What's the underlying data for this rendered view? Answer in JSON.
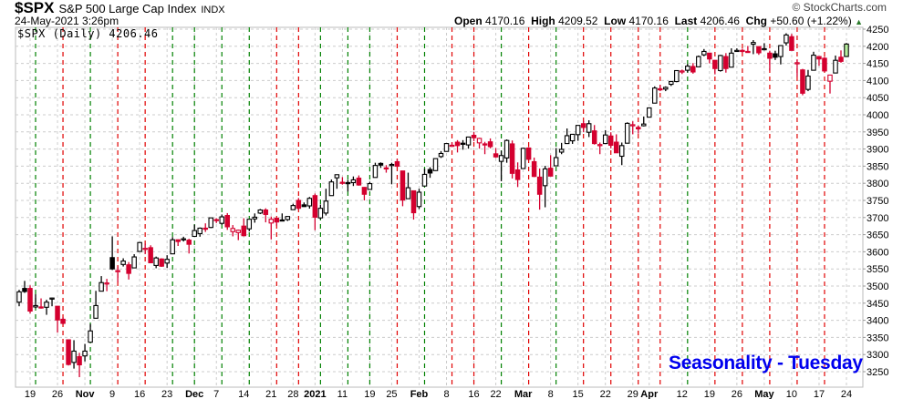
{
  "header": {
    "symbol": "$SPX",
    "description": "S&P 500 Large Cap Index",
    "exchange": "INDX",
    "datetime": "24-May-2021 3:26pm",
    "brand": "© StockCharts.com",
    "open_label": "Open",
    "open": "4170.16",
    "high_label": "High",
    "high": "4209.52",
    "low_label": "Low",
    "low": "4170.16",
    "last_label": "Last",
    "last": "4206.46",
    "chg_label": "Chg",
    "chg": "+50.60 (+1.22%)",
    "chg_arrow": "▲"
  },
  "legend": "$SPX (Daily) 4206.46",
  "annotation": "Seasonality - Tuesday",
  "colors": {
    "up": "#000000",
    "down": "#d4002f",
    "current": "#b8f0a0",
    "tuesday_up": "#008000",
    "tuesday_down": "#e00000",
    "grid": "#cccccc",
    "annotation": "#0000ee"
  },
  "chart_data": {
    "type": "candlestick",
    "ylim": [
      3225,
      4265
    ],
    "y_ticks": [
      3250,
      3300,
      3350,
      3400,
      3450,
      3500,
      3550,
      3600,
      3650,
      3700,
      3750,
      3800,
      3850,
      3900,
      3950,
      4000,
      4050,
      4100,
      4150,
      4200,
      4250
    ],
    "grid": true,
    "x_labels": [
      {
        "date": "2020-10-19",
        "label": "19",
        "bold": false
      },
      {
        "date": "2020-10-26",
        "label": "26",
        "bold": false
      },
      {
        "date": "2020-11-02",
        "label": "Nov",
        "bold": true
      },
      {
        "date": "2020-11-09",
        "label": "9",
        "bold": false
      },
      {
        "date": "2020-11-16",
        "label": "16",
        "bold": false
      },
      {
        "date": "2020-11-23",
        "label": "23",
        "bold": false
      },
      {
        "date": "2020-12-01",
        "label": "Dec",
        "bold": true
      },
      {
        "date": "2020-12-07",
        "label": "7",
        "bold": false
      },
      {
        "date": "2020-12-14",
        "label": "14",
        "bold": false
      },
      {
        "date": "2020-12-21",
        "label": "21",
        "bold": false
      },
      {
        "date": "2020-12-28",
        "label": "28",
        "bold": false
      },
      {
        "date": "2021-01-04",
        "label": "2021",
        "bold": true
      },
      {
        "date": "2021-01-11",
        "label": "11",
        "bold": false
      },
      {
        "date": "2021-01-19",
        "label": "19",
        "bold": false
      },
      {
        "date": "2021-01-25",
        "label": "25",
        "bold": false
      },
      {
        "date": "2021-02-01",
        "label": "Feb",
        "bold": true
      },
      {
        "date": "2021-02-08",
        "label": "8",
        "bold": false
      },
      {
        "date": "2021-02-16",
        "label": "16",
        "bold": false
      },
      {
        "date": "2021-02-22",
        "label": "22",
        "bold": false
      },
      {
        "date": "2021-03-01",
        "label": "Mar",
        "bold": true
      },
      {
        "date": "2021-03-08",
        "label": "8",
        "bold": false
      },
      {
        "date": "2021-03-15",
        "label": "15",
        "bold": false
      },
      {
        "date": "2021-03-22",
        "label": "22",
        "bold": false
      },
      {
        "date": "2021-03-29",
        "label": "29",
        "bold": false
      },
      {
        "date": "2021-04-01",
        "label": "Apr",
        "bold": true
      },
      {
        "date": "2021-04-12",
        "label": "12",
        "bold": false
      },
      {
        "date": "2021-04-19",
        "label": "19",
        "bold": false
      },
      {
        "date": "2021-04-26",
        "label": "26",
        "bold": false
      },
      {
        "date": "2021-05-03",
        "label": "May",
        "bold": true
      },
      {
        "date": "2021-05-10",
        "label": "10",
        "bold": false
      },
      {
        "date": "2021-05-17",
        "label": "17",
        "bold": false
      },
      {
        "date": "2021-05-24",
        "label": "24",
        "bold": false
      }
    ],
    "candles": [
      [
        "2020-10-15",
        3453,
        3489,
        3441,
        3483
      ],
      [
        "2020-10-16",
        3493,
        3515,
        3480,
        3484
      ],
      [
        "2020-10-19",
        3493,
        3502,
        3420,
        3427
      ],
      [
        "2020-10-20",
        3439,
        3476,
        3435,
        3443
      ],
      [
        "2020-10-21",
        3439,
        3464,
        3434,
        3436
      ],
      [
        "2020-10-22",
        3438,
        3460,
        3416,
        3453
      ],
      [
        "2020-10-23",
        3464,
        3466,
        3441,
        3465
      ],
      [
        "2020-10-26",
        3441,
        3441,
        3364,
        3401
      ],
      [
        "2020-10-27",
        3403,
        3409,
        3388,
        3391
      ],
      [
        "2020-10-28",
        3343,
        3343,
        3268,
        3271
      ],
      [
        "2020-10-29",
        3277,
        3342,
        3259,
        3310
      ],
      [
        "2020-10-30",
        3294,
        3305,
        3234,
        3270
      ],
      [
        "2020-11-02",
        3296,
        3331,
        3280,
        3310
      ],
      [
        "2020-11-03",
        3336,
        3389,
        3336,
        3369
      ],
      [
        "2020-11-04",
        3406,
        3486,
        3405,
        3443
      ],
      [
        "2020-11-05",
        3485,
        3529,
        3485,
        3510
      ],
      [
        "2020-11-06",
        3509,
        3521,
        3485,
        3509
      ],
      [
        "2020-11-09",
        3583,
        3645,
        3547,
        3550
      ],
      [
        "2020-11-10",
        3544,
        3557,
        3511,
        3545
      ],
      [
        "2020-11-11",
        3563,
        3581,
        3557,
        3573
      ],
      [
        "2020-11-12",
        3562,
        3570,
        3519,
        3537
      ],
      [
        "2020-11-13",
        3553,
        3593,
        3553,
        3585
      ],
      [
        "2020-11-16",
        3601,
        3628,
        3601,
        3627
      ],
      [
        "2020-11-17",
        3610,
        3624,
        3593,
        3610
      ],
      [
        "2020-11-18",
        3612,
        3619,
        3567,
        3568
      ],
      [
        "2020-11-19",
        3560,
        3586,
        3552,
        3582
      ],
      [
        "2020-11-20",
        3579,
        3581,
        3556,
        3558
      ],
      [
        "2020-11-23",
        3567,
        3590,
        3553,
        3578
      ],
      [
        "2020-11-24",
        3594,
        3643,
        3594,
        3635
      ],
      [
        "2020-11-25",
        3635,
        3636,
        3617,
        3630
      ],
      [
        "2020-11-27",
        3638,
        3644,
        3630,
        3638
      ],
      [
        "2020-11-30",
        3634,
        3638,
        3595,
        3622
      ],
      [
        "2020-12-01",
        3645,
        3679,
        3645,
        3662
      ],
      [
        "2020-12-02",
        3653,
        3671,
        3644,
        3669
      ],
      [
        "2020-12-03",
        3669,
        3683,
        3658,
        3667
      ],
      [
        "2020-12-04",
        3671,
        3700,
        3669,
        3699
      ],
      [
        "2020-12-07",
        3694,
        3698,
        3684,
        3692
      ],
      [
        "2020-12-08",
        3683,
        3709,
        3679,
        3702
      ],
      [
        "2020-12-09",
        3706,
        3713,
        3664,
        3673
      ],
      [
        "2020-12-10",
        3659,
        3678,
        3645,
        3668
      ],
      [
        "2020-12-11",
        3656,
        3665,
        3634,
        3663
      ],
      [
        "2020-12-14",
        3675,
        3698,
        3645,
        3647
      ],
      [
        "2020-12-15",
        3667,
        3695,
        3660,
        3695
      ],
      [
        "2020-12-16",
        3696,
        3712,
        3685,
        3701
      ],
      [
        "2020-12-17",
        3713,
        3725,
        3710,
        3722
      ],
      [
        "2020-12-18",
        3722,
        3727,
        3686,
        3709
      ],
      [
        "2020-12-21",
        3684,
        3703,
        3636,
        3695
      ],
      [
        "2020-12-22",
        3698,
        3698,
        3676,
        3687
      ],
      [
        "2020-12-23",
        3693,
        3712,
        3689,
        3690
      ],
      [
        "2020-12-24",
        3694,
        3704,
        3690,
        3703
      ],
      [
        "2020-12-28",
        3723,
        3740,
        3723,
        3735
      ],
      [
        "2020-12-29",
        3750,
        3757,
        3723,
        3727
      ],
      [
        "2020-12-30",
        3737,
        3744,
        3731,
        3732
      ],
      [
        "2020-12-31",
        3734,
        3760,
        3726,
        3756
      ],
      [
        "2021-01-04",
        3764,
        3770,
        3663,
        3701
      ],
      [
        "2021-01-05",
        3699,
        3738,
        3695,
        3727
      ],
      [
        "2021-01-06",
        3713,
        3784,
        3706,
        3748
      ],
      [
        "2021-01-07",
        3764,
        3811,
        3764,
        3804
      ],
      [
        "2021-01-08",
        3816,
        3826,
        3784,
        3825
      ],
      [
        "2021-01-11",
        3803,
        3818,
        3796,
        3800
      ],
      [
        "2021-01-12",
        3802,
        3810,
        3776,
        3801
      ],
      [
        "2021-01-13",
        3802,
        3820,
        3792,
        3810
      ],
      [
        "2021-01-14",
        3815,
        3823,
        3793,
        3795
      ],
      [
        "2021-01-15",
        3788,
        3789,
        3750,
        3768
      ],
      [
        "2021-01-19",
        3782,
        3804,
        3781,
        3799
      ],
      [
        "2021-01-20",
        3817,
        3860,
        3817,
        3852
      ],
      [
        "2021-01-21",
        3858,
        3861,
        3845,
        3853
      ],
      [
        "2021-01-22",
        3845,
        3853,
        3831,
        3842
      ],
      [
        "2021-01-25",
        3852,
        3860,
        3797,
        3855
      ],
      [
        "2021-01-26",
        3863,
        3871,
        3847,
        3850
      ],
      [
        "2021-01-27",
        3836,
        3836,
        3733,
        3751
      ],
      [
        "2021-01-28",
        3755,
        3831,
        3755,
        3787
      ],
      [
        "2021-01-29",
        3778,
        3778,
        3694,
        3714
      ],
      [
        "2021-02-01",
        3732,
        3784,
        3725,
        3774
      ],
      [
        "2021-02-02",
        3792,
        3843,
        3792,
        3826
      ],
      [
        "2021-02-03",
        3840,
        3847,
        3816,
        3830
      ],
      [
        "2021-02-04",
        3837,
        3872,
        3836,
        3872
      ],
      [
        "2021-02-05",
        3878,
        3894,
        3874,
        3887
      ],
      [
        "2021-02-08",
        3893,
        3916,
        3892,
        3916
      ],
      [
        "2021-02-09",
        3910,
        3919,
        3906,
        3911
      ],
      [
        "2021-02-10",
        3920,
        3926,
        3890,
        3910
      ],
      [
        "2021-02-11",
        3917,
        3926,
        3898,
        3916
      ],
      [
        "2021-02-12",
        3912,
        3935,
        3901,
        3935
      ],
      [
        "2021-02-16",
        3940,
        3950,
        3923,
        3933
      ],
      [
        "2021-02-17",
        3918,
        3933,
        3901,
        3931
      ],
      [
        "2021-02-18",
        3915,
        3921,
        3885,
        3914
      ],
      [
        "2021-02-19",
        3921,
        3931,
        3902,
        3907
      ],
      [
        "2021-02-22",
        3886,
        3903,
        3874,
        3877
      ],
      [
        "2021-02-23",
        3864,
        3895,
        3806,
        3881
      ],
      [
        "2021-02-24",
        3874,
        3928,
        3860,
        3925
      ],
      [
        "2021-02-25",
        3915,
        3925,
        3814,
        3829
      ],
      [
        "2021-02-26",
        3839,
        3861,
        3789,
        3811
      ],
      [
        "2021-03-01",
        3843,
        3904,
        3843,
        3902
      ],
      [
        "2021-03-02",
        3903,
        3906,
        3868,
        3870
      ],
      [
        "2021-03-03",
        3863,
        3875,
        3818,
        3820
      ],
      [
        "2021-03-04",
        3818,
        3843,
        3723,
        3768
      ],
      [
        "2021-03-05",
        3793,
        3851,
        3730,
        3842
      ],
      [
        "2021-03-08",
        3844,
        3882,
        3820,
        3821
      ],
      [
        "2021-03-09",
        3851,
        3903,
        3851,
        3875
      ],
      [
        "2021-03-10",
        3891,
        3918,
        3885,
        3899
      ],
      [
        "2021-03-11",
        3916,
        3960,
        3916,
        3939
      ],
      [
        "2021-03-12",
        3924,
        3944,
        3915,
        3943
      ],
      [
        "2021-03-15",
        3942,
        3970,
        3924,
        3969
      ],
      [
        "2021-03-16",
        3974,
        3982,
        3949,
        3963
      ],
      [
        "2021-03-17",
        3949,
        3984,
        3935,
        3974
      ],
      [
        "2021-03-18",
        3953,
        3970,
        3913,
        3916
      ],
      [
        "2021-03-19",
        3913,
        3919,
        3885,
        3913
      ],
      [
        "2021-03-22",
        3916,
        3955,
        3916,
        3941
      ],
      [
        "2021-03-23",
        3938,
        3949,
        3902,
        3911
      ],
      [
        "2021-03-24",
        3920,
        3943,
        3889,
        3889
      ],
      [
        "2021-03-25",
        3879,
        3919,
        3853,
        3910
      ],
      [
        "2021-03-26",
        3917,
        3978,
        3917,
        3975
      ],
      [
        "2021-03-29",
        3969,
        3981,
        3943,
        3971
      ],
      [
        "2021-03-30",
        3963,
        3969,
        3945,
        3959
      ],
      [
        "2021-03-31",
        3968,
        3995,
        3966,
        3973
      ],
      [
        "2021-04-01",
        3993,
        4021,
        3992,
        4020
      ],
      [
        "2021-04-05",
        4034,
        4083,
        4034,
        4078
      ],
      [
        "2021-04-06",
        4076,
        4087,
        4069,
        4074
      ],
      [
        "2021-04-07",
        4075,
        4083,
        4069,
        4080
      ],
      [
        "2021-04-08",
        4089,
        4099,
        4084,
        4097
      ],
      [
        "2021-04-09",
        4097,
        4129,
        4095,
        4129
      ],
      [
        "2021-04-12",
        4125,
        4132,
        4119,
        4128
      ],
      [
        "2021-04-13",
        4130,
        4148,
        4124,
        4142
      ],
      [
        "2021-04-14",
        4141,
        4151,
        4120,
        4125
      ],
      [
        "2021-04-15",
        4140,
        4173,
        4140,
        4170
      ],
      [
        "2021-04-16",
        4175,
        4192,
        4171,
        4185
      ],
      [
        "2021-04-19",
        4180,
        4181,
        4150,
        4163
      ],
      [
        "2021-04-20",
        4159,
        4160,
        4118,
        4135
      ],
      [
        "2021-04-21",
        4129,
        4175,
        4126,
        4173
      ],
      [
        "2021-04-22",
        4170,
        4180,
        4123,
        4135
      ],
      [
        "2021-04-23",
        4139,
        4194,
        4139,
        4180
      ],
      [
        "2021-04-26",
        4186,
        4194,
        4184,
        4188
      ],
      [
        "2021-04-27",
        4188,
        4193,
        4182,
        4187
      ],
      [
        "2021-04-28",
        4185,
        4201,
        4182,
        4183
      ],
      [
        "2021-04-29",
        4206,
        4218,
        4177,
        4211
      ],
      [
        "2021-04-30",
        4199,
        4199,
        4175,
        4181
      ],
      [
        "2021-05-03",
        4191,
        4209,
        4188,
        4193
      ],
      [
        "2021-05-04",
        4180,
        4187,
        4129,
        4165
      ],
      [
        "2021-05-05",
        4178,
        4187,
        4160,
        4168
      ],
      [
        "2021-05-06",
        4170,
        4202,
        4147,
        4202
      ],
      [
        "2021-05-07",
        4210,
        4238,
        4202,
        4233
      ],
      [
        "2021-05-10",
        4228,
        4236,
        4188,
        4188
      ],
      [
        "2021-05-11",
        4150,
        4162,
        4111,
        4152
      ],
      [
        "2021-05-12",
        4131,
        4134,
        4057,
        4063
      ],
      [
        "2021-05-13",
        4074,
        4131,
        4069,
        4113
      ],
      [
        "2021-05-14",
        4130,
        4184,
        4130,
        4174
      ],
      [
        "2021-05-17",
        4170,
        4170,
        4143,
        4163
      ],
      [
        "2021-05-18",
        4165,
        4169,
        4126,
        4128
      ],
      [
        "2021-05-19",
        4098,
        4117,
        4062,
        4116
      ],
      [
        "2021-05-20",
        4122,
        4173,
        4122,
        4159
      ],
      [
        "2021-05-21",
        4168,
        4188,
        4152,
        4156
      ],
      [
        "2021-05-24",
        4170.16,
        4209.52,
        4170.16,
        4206.46
      ]
    ]
  }
}
